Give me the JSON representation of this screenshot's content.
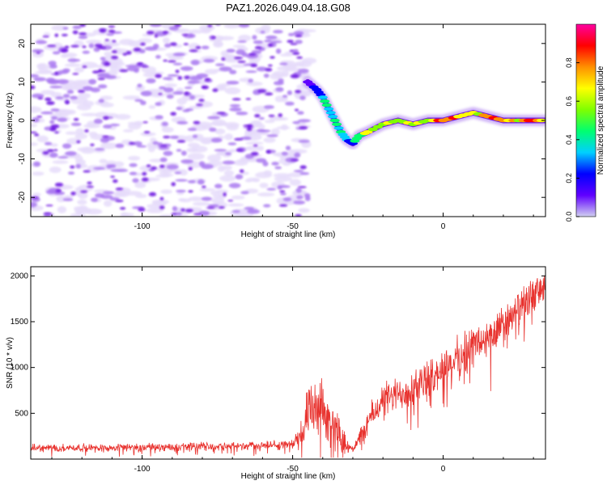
{
  "title": "PAZ1.2026.049.04.18.G08",
  "colors": {
    "snr_line": "#e8322e",
    "spec_light": "#e6dcfa",
    "spec_mid": "#a978f0",
    "spec_dark": "#6a10e0",
    "colorbar_stops": [
      "#d0d0f0",
      "#6000ff",
      "#0000ff",
      "#00d0ff",
      "#00ff70",
      "#7fff00",
      "#ffff00",
      "#ff9000",
      "#ff0000",
      "#ff00a0"
    ]
  },
  "chart_data": [
    {
      "type": "heatmap",
      "title": "PAZ1.2026.049.04.18.G08",
      "xlabel": "Height of straight line (km)",
      "ylabel": "Frequency (Hz)",
      "xlim": [
        -137,
        34
      ],
      "ylim": [
        -25,
        25
      ],
      "x_ticks": [
        -100,
        -50,
        0
      ],
      "x_tick_labels": [
        "-100",
        "-50",
        "0"
      ],
      "y_ticks": [
        -20,
        -10,
        0,
        10,
        20
      ],
      "y_tick_labels": [
        "-20",
        "-10",
        "0",
        "10",
        "20"
      ],
      "noise_region_x": [
        -137,
        -47
      ],
      "signal_ridge": {
        "x": [
          -45,
          -42,
          -40,
          -38,
          -36,
          -34,
          -32,
          -30,
          -28,
          -25,
          -20,
          -15,
          -10,
          -5,
          0,
          5,
          10,
          15,
          20,
          25,
          30,
          34
        ],
        "freq": [
          10,
          8,
          6,
          3,
          0,
          -3,
          -5,
          -6,
          -4,
          -3,
          -1,
          0,
          -1,
          0,
          0,
          1,
          2,
          1,
          0,
          0,
          0,
          0
        ],
        "amplitude": [
          0.15,
          0.2,
          0.3,
          0.35,
          0.4,
          0.35,
          0.3,
          0.3,
          0.5,
          0.6,
          0.55,
          0.6,
          0.7,
          0.65,
          0.9,
          0.7,
          0.6,
          0.8,
          0.7,
          0.6,
          0.85,
          0.6
        ]
      },
      "colorbar": {
        "label": "Normalized spectral amplitude",
        "range": [
          0.0,
          1.0
        ],
        "ticks": [
          0.0,
          0.2,
          0.4,
          0.6,
          0.8
        ],
        "tick_labels": [
          "0.0",
          "0.2",
          "0.4",
          "0.6",
          "0.8"
        ]
      }
    },
    {
      "type": "line",
      "xlabel": "Height of straight line (km)",
      "ylabel": "SNR (10 * v/v)",
      "xlim": [
        -137,
        34
      ],
      "ylim": [
        0,
        2100
      ],
      "x_ticks": [
        -100,
        -50,
        0
      ],
      "x_tick_labels": [
        "-100",
        "-50",
        "0"
      ],
      "y_ticks": [
        500,
        1000,
        1500,
        2000
      ],
      "y_tick_labels": [
        "500",
        "1000",
        "1500",
        "2000"
      ],
      "trend": {
        "x": [
          -137,
          -100,
          -60,
          -50,
          -47,
          -45,
          -43,
          -40,
          -38,
          -35,
          -32,
          -30,
          -28,
          -25,
          -20,
          -15,
          -10,
          -5,
          0,
          5,
          10,
          15,
          20,
          25,
          30,
          34
        ],
        "mean": [
          120,
          130,
          150,
          160,
          300,
          450,
          500,
          520,
          420,
          300,
          150,
          120,
          200,
          400,
          650,
          700,
          800,
          850,
          1000,
          1100,
          1250,
          1300,
          1450,
          1600,
          1800,
          1850
        ],
        "spread": [
          40,
          40,
          45,
          50,
          180,
          280,
          300,
          300,
          250,
          200,
          80,
          60,
          100,
          150,
          180,
          180,
          220,
          200,
          200,
          220,
          220,
          220,
          220,
          220,
          180,
          160
        ]
      }
    }
  ]
}
